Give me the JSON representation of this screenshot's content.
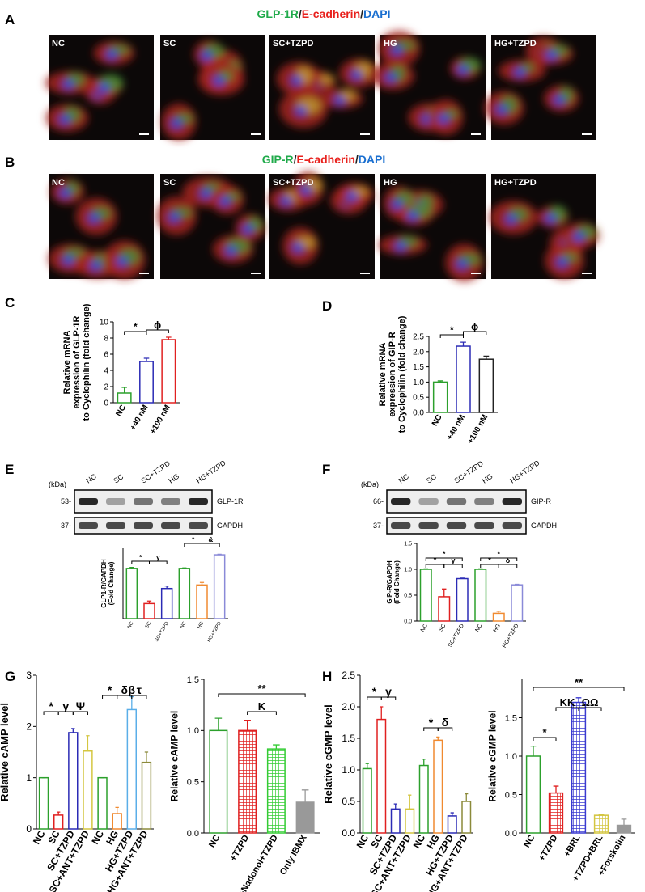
{
  "figure": {
    "panel_labels": [
      "A",
      "B",
      "C",
      "D",
      "E",
      "F",
      "G",
      "H"
    ],
    "A_title": [
      "GLP-1R",
      "/",
      "E-cadherin",
      "/",
      "DAPI"
    ],
    "B_title": [
      "GIP-R",
      "/",
      "E-cadherin",
      "/",
      "DAPI"
    ],
    "A_images": [
      "NC",
      "SC",
      "SC+TZPD",
      "HG",
      "HG+TZPD"
    ],
    "B_images": [
      "NC",
      "SC",
      "SC+TZPD",
      "HG",
      "HG+TZPD"
    ],
    "E_blot": {
      "kda": "(kDa)",
      "lanes": [
        "NC",
        "SC",
        "SC+TZPD",
        "HG",
        "HG+TZPD"
      ],
      "markers": [
        "53-",
        "37-"
      ],
      "bands": [
        "GLP-1R",
        "GAPDH"
      ]
    },
    "F_blot": {
      "kda": "(kDa)",
      "lanes": [
        "NC",
        "SC",
        "SC+TZPD",
        "HG",
        "HG+TZPD"
      ],
      "markers": [
        "66-",
        "37-"
      ],
      "bands": [
        "GIP-R",
        "GAPDH"
      ]
    }
  },
  "chart_data": [
    {
      "type": "bar",
      "ylabel": [
        "Relative mRNA",
        "expression of GLP-1R",
        "to Cyclophilin (fold change)"
      ],
      "categories": [
        "NC",
        "+40 nM",
        "+100 nM"
      ],
      "values": [
        1.2,
        5.1,
        7.8
      ],
      "errors": [
        0.7,
        0.4,
        0.3
      ],
      "colors": [
        "#2ca02c",
        "#2b2bb5",
        "#e02020"
      ],
      "ylim": [
        0,
        10
      ],
      "yticks": [
        0,
        2,
        4,
        6,
        8,
        10
      ],
      "annotations": [
        "*",
        "ϕ"
      ]
    },
    {
      "type": "bar",
      "ylabel": [
        "Relative mRNA",
        "expression of GIP-R",
        "to Cyclophilin (fold change)"
      ],
      "categories": [
        "NC",
        "+40 nM",
        "+100 nM"
      ],
      "values": [
        1.0,
        2.18,
        1.75
      ],
      "errors": [
        0.04,
        0.13,
        0.1
      ],
      "colors": [
        "#2ca02c",
        "#2b2bb5",
        "#222222"
      ],
      "ylim": [
        0,
        2.5
      ],
      "yticks": [
        {
          "value": 0,
          "label": "0.0"
        },
        0.5,
        {
          "value": 1,
          "label": "1.0"
        },
        1.5,
        {
          "value": 2,
          "label": "2.0"
        },
        2.5
      ],
      "annotations": [
        "*",
        "ϕ"
      ]
    },
    {
      "type": "bar",
      "ylabel": [
        "GLP1-R/GAPDH",
        "(Fold Change)"
      ],
      "categories": [
        "NC",
        "SC",
        "SC+TZPD",
        "NC",
        "HG",
        "HG+TZPD"
      ],
      "values": [
        1.0,
        0.3,
        0.6,
        1.0,
        0.67,
        1.27
      ],
      "errors": [
        0.02,
        0.05,
        0.05,
        0.01,
        0.05,
        0.01
      ],
      "colors": [
        "#2ca02c",
        "#e02020",
        "#2b2bb5",
        "#2ca02c",
        "#f08a30",
        "#8a8ad8"
      ],
      "ylim": [
        0,
        1.4
      ],
      "annotations": [
        "*",
        "γ",
        "*",
        "&"
      ]
    },
    {
      "type": "bar",
      "ylabel": [
        "GIP-R/GAPDH",
        "(Fold Change)"
      ],
      "categories": [
        "NC",
        "SC",
        "SC+TZPD",
        "NC",
        "HG",
        "HG+TZPD"
      ],
      "values": [
        1.0,
        0.47,
        0.82,
        1.0,
        0.15,
        0.7
      ],
      "errors": [
        0.01,
        0.15,
        0.01,
        0.01,
        0.04,
        0.01
      ],
      "colors": [
        "#2ca02c",
        "#e02020",
        "#2b2bb5",
        "#2ca02c",
        "#f08a30",
        "#8a8ad8"
      ],
      "ylim": [
        0,
        1.5
      ],
      "yticks": [
        {
          "value": 0,
          "label": "0.0"
        },
        0.5,
        {
          "value": 1,
          "label": "1.0"
        },
        1.5
      ],
      "annotations": [
        "*",
        "*",
        "γ",
        "*",
        "*",
        "δ"
      ]
    },
    {
      "type": "bar",
      "ylabel": [
        "Relative cAMP level"
      ],
      "categories": [
        "NC",
        "SC",
        "SC+TZPD",
        "SC+ANT+TZPD",
        "NC",
        "HG",
        "HG+TZPD",
        "HG+ANT+TZPD"
      ],
      "values": [
        1.0,
        0.27,
        1.88,
        1.52,
        1.0,
        0.3,
        2.33,
        1.3
      ],
      "errors": [
        0,
        0.06,
        0.08,
        0.3,
        0,
        0.12,
        0.25,
        0.2
      ],
      "colors": [
        "#2ca02c",
        "#e02020",
        "#2b2bb5",
        "#d4c640",
        "#2ca02c",
        "#f08a30",
        "#5aaee8",
        "#8b8a3a"
      ],
      "ylim": [
        0,
        3
      ],
      "yticks": [
        0,
        1,
        2,
        3
      ],
      "annotations": [
        "*",
        "γ",
        "Ψ",
        "*",
        "δ",
        "β",
        "τ"
      ]
    },
    {
      "type": "bar",
      "ylabel": [
        "Relative cAMP level"
      ],
      "categories": [
        "NC",
        "+TZPD",
        "+Nadonol+TZPD",
        "Only IBMX"
      ],
      "values": [
        1.0,
        1.0,
        0.82,
        0.3
      ],
      "errors": [
        0.12,
        0.1,
        0.04,
        0.12
      ],
      "colors": [
        "#2ca02c",
        "#e02020",
        "#33cc33",
        "#999999"
      ],
      "fill_styles": [
        "outline",
        "hatch",
        "hatch",
        "solid"
      ],
      "ylim": [
        0,
        1.5
      ],
      "yticks": [
        {
          "value": 0,
          "label": "0.0"
        },
        0.5,
        {
          "value": 1,
          "label": "1.0"
        },
        1.5
      ],
      "annotations": [
        "**",
        "K"
      ]
    },
    {
      "type": "bar",
      "ylabel": [
        "Relative cGMP level"
      ],
      "categories": [
        "NC",
        "SC",
        "SC+TZPD",
        "SC+ANT+TZPD",
        "NC",
        "HG",
        "HG+TZPD",
        "HG+ANT+TZPD"
      ],
      "values": [
        1.02,
        1.8,
        0.38,
        0.38,
        1.07,
        1.47,
        0.27,
        0.5
      ],
      "errors": [
        0.08,
        0.2,
        0.08,
        0.22,
        0.1,
        0.05,
        0.05,
        0.12
      ],
      "colors": [
        "#2ca02c",
        "#e02020",
        "#2b2bb5",
        "#d4c640",
        "#2ca02c",
        "#f08a30",
        "#2b2bb5",
        "#8b8a3a"
      ],
      "ylim": [
        0,
        2.5
      ],
      "yticks": [
        {
          "value": 0,
          "label": "0.0"
        },
        0.5,
        {
          "value": 1,
          "label": "1.0"
        },
        1.5,
        {
          "value": 2,
          "label": "2.0"
        },
        2.5
      ],
      "annotations": [
        "*",
        "γ",
        "*",
        "δ"
      ]
    },
    {
      "type": "bar",
      "ylabel": [
        "Relative cGMP level"
      ],
      "categories": [
        "NC",
        "+TZPD",
        "+BRL",
        "+TZPD+BRL",
        "+Forskolin"
      ],
      "values": [
        1.0,
        0.52,
        1.7,
        0.23,
        0.1
      ],
      "errors": [
        0.13,
        0.09,
        0.06,
        0.01,
        0.08
      ],
      "colors": [
        "#2ca02c",
        "#e02020",
        "#3a3ad0",
        "#d4c640",
        "#999999"
      ],
      "fill_styles": [
        "outline",
        "hatch",
        "hatch",
        "hatch",
        "solid"
      ],
      "ylim": [
        0,
        2.0
      ],
      "yticks": [
        {
          "value": 0,
          "label": "0.0"
        },
        0.5,
        {
          "value": 1,
          "label": "1.0"
        },
        1.5
      ],
      "annotations": [
        "*",
        "KK",
        "ΩΩ",
        "**"
      ]
    }
  ]
}
